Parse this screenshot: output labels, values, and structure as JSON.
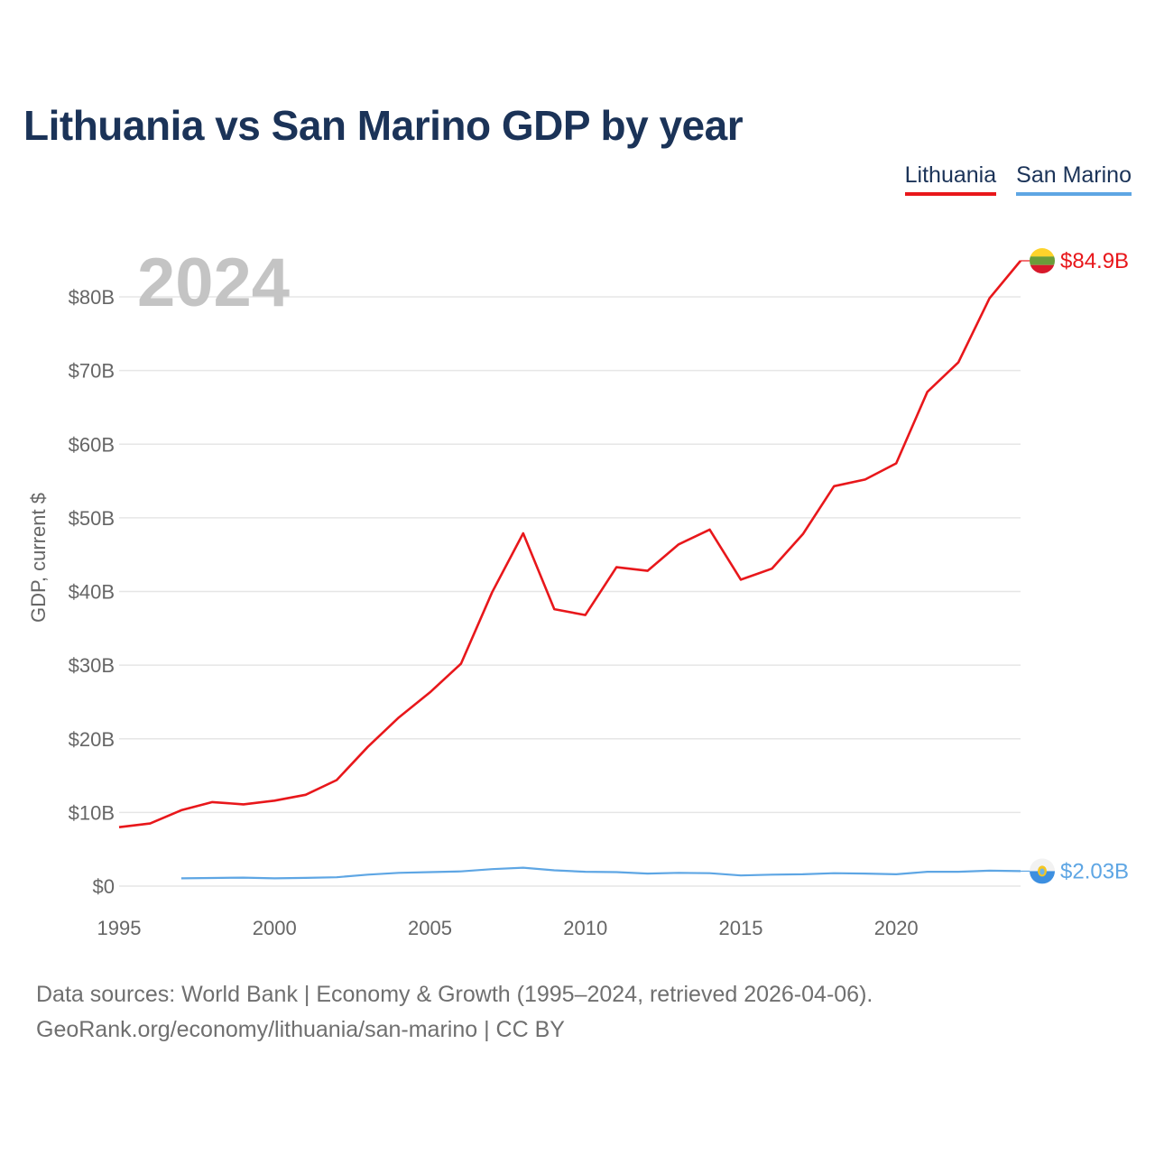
{
  "chart_title": "Lithuania vs San Marino GDP by year",
  "legend": {
    "lithuania": "Lithuania",
    "san_marino": "San Marino"
  },
  "year_label": "2024",
  "end_labels": {
    "lithuania": "$84.9B",
    "san_marino": "$2.03B"
  },
  "footer": {
    "line1": "Data sources: World Bank | Economy & Growth (1995–2024, retrieved 2026-04-06).",
    "line2": "GeoRank.org/economy/lithuania/san-marino | CC BY"
  },
  "colors": {
    "lithuania": "#e8171b",
    "san_marino": "#5ea6e4",
    "title": "#1b3358",
    "grid": "#e6e6e6"
  },
  "chart_data": {
    "type": "line",
    "title": "Lithuania vs San Marino GDP by year",
    "xlabel": "",
    "ylabel": "GDP, current $",
    "xlim": [
      1995,
      2024
    ],
    "ylim": [
      0,
      85
    ],
    "x_ticks": [
      1995,
      2000,
      2005,
      2010,
      2015,
      2020
    ],
    "y_ticks": [
      {
        "value": 0,
        "label": "$0"
      },
      {
        "value": 10,
        "label": "$10B"
      },
      {
        "value": 20,
        "label": "$20B"
      },
      {
        "value": 30,
        "label": "$30B"
      },
      {
        "value": 40,
        "label": "$40B"
      },
      {
        "value": 50,
        "label": "$50B"
      },
      {
        "value": 60,
        "label": "$60B"
      },
      {
        "value": 70,
        "label": "$70B"
      },
      {
        "value": 80,
        "label": "$80B"
      }
    ],
    "legend_position": "top-right",
    "series": [
      {
        "name": "Lithuania",
        "x": [
          1995,
          1996,
          1997,
          1998,
          1999,
          2000,
          2001,
          2002,
          2003,
          2004,
          2005,
          2006,
          2007,
          2008,
          2009,
          2010,
          2011,
          2012,
          2013,
          2014,
          2015,
          2016,
          2017,
          2018,
          2019,
          2020,
          2021,
          2022,
          2023,
          2024
        ],
        "values": [
          8.0,
          8.5,
          10.3,
          11.4,
          11.1,
          11.6,
          12.4,
          14.4,
          18.9,
          22.9,
          26.3,
          30.2,
          39.9,
          47.9,
          37.6,
          36.8,
          43.3,
          42.8,
          46.4,
          48.4,
          41.6,
          43.1,
          47.8,
          54.3,
          55.2,
          57.4,
          67.1,
          71.1,
          79.8,
          84.9
        ],
        "end_label": "$84.9B"
      },
      {
        "name": "San Marino",
        "x": [
          1997,
          1998,
          1999,
          2000,
          2001,
          2002,
          2003,
          2004,
          2005,
          2006,
          2007,
          2008,
          2009,
          2010,
          2011,
          2012,
          2013,
          2014,
          2015,
          2016,
          2017,
          2018,
          2019,
          2020,
          2021,
          2022,
          2023,
          2024
        ],
        "values": [
          1.05,
          1.1,
          1.15,
          1.05,
          1.12,
          1.2,
          1.55,
          1.8,
          1.9,
          2.0,
          2.3,
          2.5,
          2.15,
          1.95,
          1.9,
          1.7,
          1.8,
          1.75,
          1.45,
          1.55,
          1.6,
          1.75,
          1.7,
          1.6,
          1.95,
          1.95,
          2.1,
          2.03
        ],
        "end_label": "$2.03B"
      }
    ]
  }
}
